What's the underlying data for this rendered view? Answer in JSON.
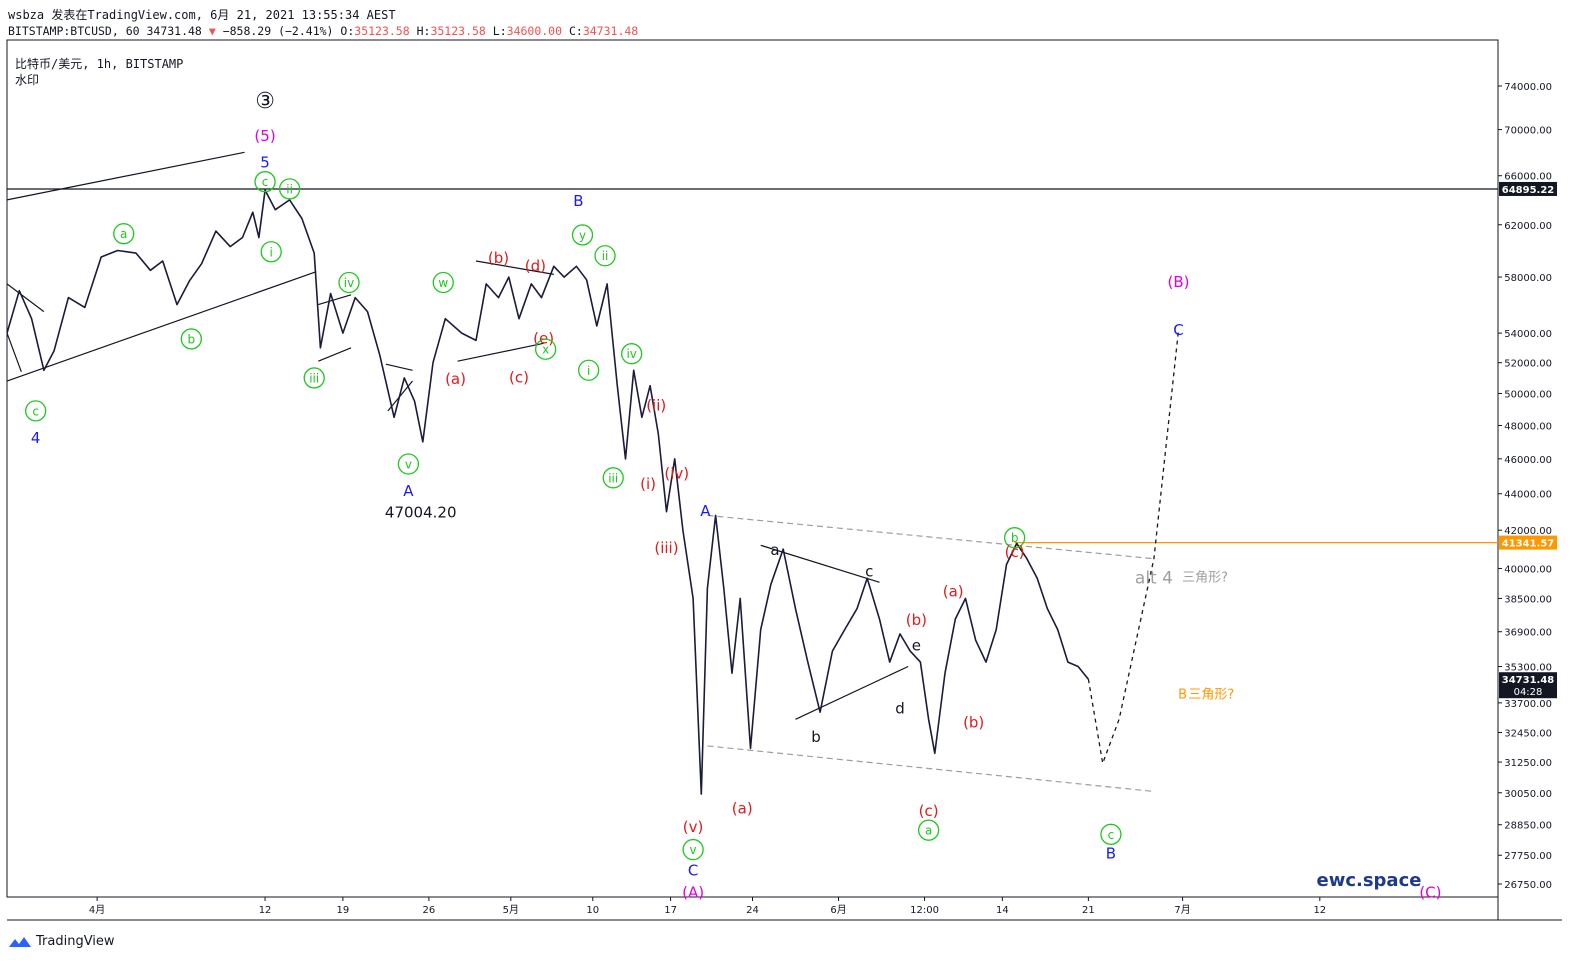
{
  "header": {
    "line1": "wsbza 发表在TradingView.com, 6月 21, 2021 13:55:34 AEST",
    "symbol_prefix": "BITSTAMP:BTCUSD, 60 34731.48",
    "change_arrow": "▼",
    "change": "−858.29 (−2.41%)",
    "o_label": "O:",
    "o": "35123.58",
    "h_label": "H:",
    "h": "35123.58",
    "l_label": "L:",
    "l": "34600.00",
    "c_label": "C:",
    "c": "34731.48"
  },
  "legend": {
    "title": "比特币/美元, 1h, BITSTAMP",
    "sub": "水印"
  },
  "footer": {
    "brand": "TradingView"
  },
  "colors": {
    "green": "#22d422",
    "red": "#e51c1c",
    "blue": "#1a1aff",
    "magenta": "#e600e6",
    "orange": "#ff9800",
    "gray": "#9e9e9e",
    "price_line": "#131722"
  },
  "chart_data": {
    "type": "line",
    "title": "",
    "xlabel": "",
    "ylabel": "",
    "scale": "log",
    "ylim": [
      26000,
      78000
    ],
    "y_ticks": [
      "74000.00",
      "70000.00",
      "66000.00",
      "62000.00",
      "58000.00",
      "54000.00",
      "52000.00",
      "50000.00",
      "48000.00",
      "46000.00",
      "44000.00",
      "42000.00",
      "40000.00",
      "38500.00",
      "36900.00",
      "35300.00",
      "33700.00",
      "32450.00",
      "31250.00",
      "30050.00",
      "28850.00",
      "27750.00",
      "26750.00"
    ],
    "x_ticks": [
      "4月",
      "12",
      "19",
      "26",
      "5月",
      "10",
      "17",
      "24",
      "6月",
      "12:00",
      "14",
      "21",
      "7月",
      "12"
    ],
    "price_markers": [
      {
        "value": "64895.22",
        "style": "black"
      },
      {
        "value": "41341.57",
        "style": "orange"
      },
      {
        "value": "34731.48",
        "style": "dark",
        "countdown": "04:28"
      }
    ],
    "series": [
      {
        "values": [
          {
            "t": 0.0,
            "p": 54000
          },
          {
            "t": 0.6,
            "p": 57000
          },
          {
            "t": 1.2,
            "p": 55000
          },
          {
            "t": 1.8,
            "p": 51500
          },
          {
            "t": 2.3,
            "p": 52800
          },
          {
            "t": 3.0,
            "p": 56500
          },
          {
            "t": 3.8,
            "p": 55800
          },
          {
            "t": 4.6,
            "p": 59500
          },
          {
            "t": 5.4,
            "p": 60000
          },
          {
            "t": 6.3,
            "p": 59800
          },
          {
            "t": 7.0,
            "p": 58500
          },
          {
            "t": 7.6,
            "p": 59200
          },
          {
            "t": 8.3,
            "p": 56000
          },
          {
            "t": 8.9,
            "p": 57700
          },
          {
            "t": 9.5,
            "p": 59000
          },
          {
            "t": 10.2,
            "p": 61500
          },
          {
            "t": 10.9,
            "p": 60300
          },
          {
            "t": 11.5,
            "p": 61000
          },
          {
            "t": 12.0,
            "p": 63000
          },
          {
            "t": 12.3,
            "p": 61000
          },
          {
            "t": 12.6,
            "p": 64800
          },
          {
            "t": 13.1,
            "p": 63200
          },
          {
            "t": 13.8,
            "p": 64000
          },
          {
            "t": 14.4,
            "p": 62500
          },
          {
            "t": 15.0,
            "p": 59800
          },
          {
            "t": 15.3,
            "p": 53000
          },
          {
            "t": 15.8,
            "p": 56800
          },
          {
            "t": 16.4,
            "p": 54000
          },
          {
            "t": 17.0,
            "p": 56500
          },
          {
            "t": 17.6,
            "p": 55500
          },
          {
            "t": 18.2,
            "p": 52500
          },
          {
            "t": 18.9,
            "p": 48500
          },
          {
            "t": 19.4,
            "p": 51000
          },
          {
            "t": 19.9,
            "p": 49500
          },
          {
            "t": 20.3,
            "p": 47004.2
          },
          {
            "t": 20.8,
            "p": 52000
          },
          {
            "t": 21.4,
            "p": 55000
          },
          {
            "t": 22.2,
            "p": 54000
          },
          {
            "t": 22.9,
            "p": 53500
          },
          {
            "t": 23.4,
            "p": 57500
          },
          {
            "t": 24.0,
            "p": 56500
          },
          {
            "t": 24.5,
            "p": 58000
          },
          {
            "t": 25.0,
            "p": 55000
          },
          {
            "t": 25.6,
            "p": 57500
          },
          {
            "t": 26.1,
            "p": 56500
          },
          {
            "t": 26.7,
            "p": 58800
          },
          {
            "t": 27.2,
            "p": 58000
          },
          {
            "t": 27.8,
            "p": 58800
          },
          {
            "t": 28.3,
            "p": 57800
          },
          {
            "t": 28.8,
            "p": 54500
          },
          {
            "t": 29.3,
            "p": 57500
          },
          {
            "t": 29.8,
            "p": 50500
          },
          {
            "t": 30.2,
            "p": 46000
          },
          {
            "t": 30.6,
            "p": 51500
          },
          {
            "t": 31.0,
            "p": 48500
          },
          {
            "t": 31.4,
            "p": 50500
          },
          {
            "t": 31.8,
            "p": 47500
          },
          {
            "t": 32.2,
            "p": 43000
          },
          {
            "t": 32.6,
            "p": 46000
          },
          {
            "t": 33.0,
            "p": 42000
          },
          {
            "t": 33.5,
            "p": 38500
          },
          {
            "t": 33.9,
            "p": 30000
          },
          {
            "t": 34.2,
            "p": 39000
          },
          {
            "t": 34.6,
            "p": 42800
          },
          {
            "t": 35.0,
            "p": 39000
          },
          {
            "t": 35.4,
            "p": 35000
          },
          {
            "t": 35.8,
            "p": 38500
          },
          {
            "t": 36.3,
            "p": 31800
          },
          {
            "t": 36.8,
            "p": 37000
          },
          {
            "t": 37.3,
            "p": 39200
          },
          {
            "t": 37.9,
            "p": 41000
          },
          {
            "t": 38.5,
            "p": 38000
          },
          {
            "t": 39.1,
            "p": 35500
          },
          {
            "t": 39.7,
            "p": 33300
          },
          {
            "t": 40.3,
            "p": 36000
          },
          {
            "t": 40.9,
            "p": 37000
          },
          {
            "t": 41.5,
            "p": 38000
          },
          {
            "t": 42.0,
            "p": 39500
          },
          {
            "t": 42.6,
            "p": 37500
          },
          {
            "t": 43.1,
            "p": 35500
          },
          {
            "t": 43.6,
            "p": 36800
          },
          {
            "t": 44.1,
            "p": 36000
          },
          {
            "t": 44.6,
            "p": 35500
          },
          {
            "t": 45.0,
            "p": 33000
          },
          {
            "t": 45.3,
            "p": 31600
          },
          {
            "t": 45.8,
            "p": 35000
          },
          {
            "t": 46.3,
            "p": 37500
          },
          {
            "t": 46.8,
            "p": 38500
          },
          {
            "t": 47.3,
            "p": 36500
          },
          {
            "t": 47.8,
            "p": 35500
          },
          {
            "t": 48.3,
            "p": 37000
          },
          {
            "t": 48.8,
            "p": 40200
          },
          {
            "t": 49.3,
            "p": 41300
          },
          {
            "t": 49.8,
            "p": 40500
          },
          {
            "t": 50.3,
            "p": 39500
          },
          {
            "t": 50.8,
            "p": 38000
          },
          {
            "t": 51.3,
            "p": 37000
          },
          {
            "t": 51.8,
            "p": 35500
          },
          {
            "t": 52.3,
            "p": 35300
          },
          {
            "t": 52.8,
            "p": 34731.48
          }
        ]
      }
    ],
    "wave_labels": [
      {
        "text": "③",
        "color": "black",
        "t": 12.6,
        "p": 72500,
        "circle": true
      },
      {
        "text": "(5)",
        "color": "magenta",
        "t": 12.6,
        "p": 69500
      },
      {
        "text": "5",
        "color": "blue",
        "t": 12.6,
        "p": 67200
      },
      {
        "text": "c",
        "color": "green",
        "t": 12.6,
        "p": 65500,
        "circle": true
      },
      {
        "text": "ii",
        "color": "green",
        "t": 13.8,
        "p": 64900,
        "circle": true
      },
      {
        "text": "i",
        "color": "green",
        "t": 12.9,
        "p": 59900,
        "circle": true
      },
      {
        "text": "a",
        "color": "green",
        "t": 5.7,
        "p": 61300,
        "circle": true
      },
      {
        "text": "b",
        "color": "green",
        "t": 9.0,
        "p": 53600,
        "circle": true
      },
      {
        "text": "c",
        "color": "green",
        "t": 1.4,
        "p": 48900,
        "circle": true
      },
      {
        "text": "4",
        "color": "blue",
        "t": 1.4,
        "p": 47300
      },
      {
        "text": "iv",
        "color": "green",
        "t": 16.7,
        "p": 57600,
        "circle": true
      },
      {
        "text": "iii",
        "color": "green",
        "t": 15.0,
        "p": 51000,
        "circle": true
      },
      {
        "text": "v",
        "color": "green",
        "t": 19.6,
        "p": 45700,
        "circle": true
      },
      {
        "text": "A",
        "color": "blue",
        "t": 19.6,
        "p": 44200
      },
      {
        "text": "47004.20",
        "color": "black",
        "t": 20.2,
        "p": 43000
      },
      {
        "text": "w",
        "color": "green",
        "t": 21.3,
        "p": 57600,
        "circle": true
      },
      {
        "text": "(b)",
        "color": "red",
        "t": 24.0,
        "p": 59500
      },
      {
        "text": "(d)",
        "color": "red",
        "t": 25.8,
        "p": 58900
      },
      {
        "text": "(e)",
        "color": "red",
        "t": 26.2,
        "p": 53700
      },
      {
        "text": "x",
        "color": "green",
        "t": 26.3,
        "p": 52900,
        "circle": true
      },
      {
        "text": "(a)",
        "color": "red",
        "t": 21.9,
        "p": 51000
      },
      {
        "text": "(c)",
        "color": "red",
        "t": 25.0,
        "p": 51100
      },
      {
        "text": "B",
        "color": "blue",
        "t": 27.9,
        "p": 64000
      },
      {
        "text": "y",
        "color": "green",
        "t": 28.1,
        "p": 61200,
        "circle": true
      },
      {
        "text": "ii",
        "color": "green",
        "t": 29.2,
        "p": 59600,
        "circle": true
      },
      {
        "text": "i",
        "color": "green",
        "t": 28.4,
        "p": 51500,
        "circle": true
      },
      {
        "text": "iv",
        "color": "green",
        "t": 30.5,
        "p": 52600,
        "circle": true
      },
      {
        "text": "(ii)",
        "color": "red",
        "t": 31.7,
        "p": 49300
      },
      {
        "text": "iii",
        "color": "green",
        "t": 29.6,
        "p": 44900,
        "circle": true
      },
      {
        "text": "(iv)",
        "color": "red",
        "t": 32.7,
        "p": 45200
      },
      {
        "text": "(i)",
        "color": "red",
        "t": 31.3,
        "p": 44600
      },
      {
        "text": "(iii)",
        "color": "red",
        "t": 32.2,
        "p": 41100
      },
      {
        "text": "A",
        "color": "blue",
        "t": 34.1,
        "p": 43100
      },
      {
        "text": "(v)",
        "color": "red",
        "t": 33.5,
        "p": 28800
      },
      {
        "text": "v",
        "color": "green",
        "t": 33.5,
        "p": 27950,
        "circle": true
      },
      {
        "text": "C",
        "color": "blue",
        "t": 33.5,
        "p": 27250
      },
      {
        "text": "(A)",
        "color": "magenta",
        "t": 33.5,
        "p": 26500
      },
      {
        "text": "(a)",
        "color": "red",
        "t": 35.9,
        "p": 29500
      },
      {
        "text": "a",
        "color": "black",
        "t": 37.5,
        "p": 41000
      },
      {
        "text": "c",
        "color": "black",
        "t": 42.1,
        "p": 39900
      },
      {
        "text": "b",
        "color": "black",
        "t": 39.5,
        "p": 32300
      },
      {
        "text": "d",
        "color": "black",
        "t": 43.6,
        "p": 33500
      },
      {
        "text": "e",
        "color": "black",
        "t": 44.4,
        "p": 36300
      },
      {
        "text": "(b)",
        "color": "red",
        "t": 44.4,
        "p": 37500
      },
      {
        "text": "(a)",
        "color": "red",
        "t": 46.2,
        "p": 38900
      },
      {
        "text": "(b)",
        "color": "red",
        "t": 47.2,
        "p": 32900
      },
      {
        "text": "(c)",
        "color": "red",
        "t": 45.0,
        "p": 29400
      },
      {
        "text": "a",
        "color": "green",
        "t": 45.0,
        "p": 28650,
        "circle": true
      },
      {
        "text": "b",
        "color": "green",
        "t": 49.2,
        "p": 41600,
        "circle": true
      },
      {
        "text": "(c)",
        "color": "red",
        "t": 49.2,
        "p": 40900
      },
      {
        "text": "c",
        "color": "green",
        "t": 53.9,
        "p": 28500,
        "circle": true
      },
      {
        "text": "B",
        "color": "blue",
        "t": 53.9,
        "p": 27850
      },
      {
        "text": "(B)",
        "color": "magenta",
        "t": 57.2,
        "p": 57700
      },
      {
        "text": "C",
        "color": "blue",
        "t": 57.2,
        "p": 54300
      },
      {
        "text": "(C)",
        "color": "magenta",
        "t": 69.5,
        "p": 26500
      }
    ],
    "annotations": [
      {
        "text": "alt 4",
        "color": "gray",
        "t": 56.0,
        "p": 39500
      },
      {
        "text": "三角形?",
        "color": "gray",
        "t": 58.5,
        "p": 39600
      },
      {
        "text": "B",
        "color": "orange",
        "t": 57.4,
        "p": 34100
      },
      {
        "text": "三角形?",
        "color": "orange",
        "t": 58.8,
        "p": 34100
      },
      {
        "text": "ewc.space",
        "color": "navy",
        "t": 66.5,
        "p": 26850
      }
    ],
    "grid": false,
    "legend_position": "none"
  }
}
